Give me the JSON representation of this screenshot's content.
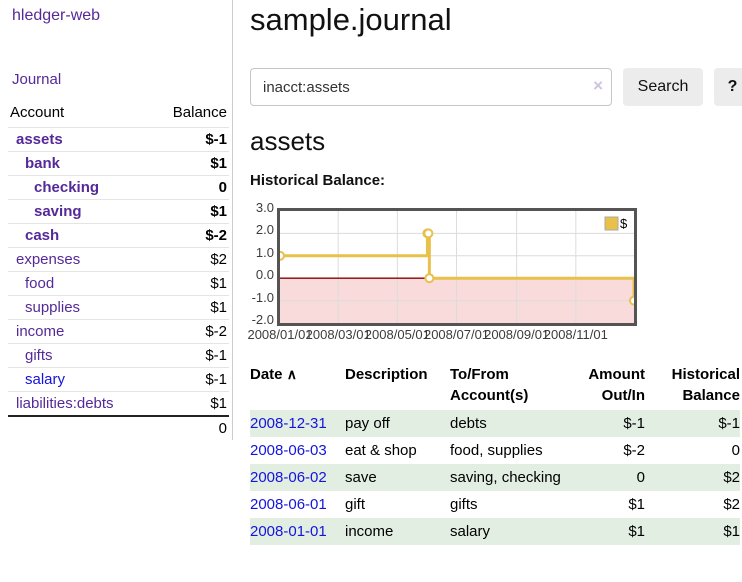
{
  "app": {
    "title": "hledger-web"
  },
  "sidebar": {
    "journal_label": "Journal",
    "accounts": {
      "header_account": "Account",
      "header_balance": "Balance",
      "rows": [
        {
          "name": "assets",
          "balance": "$-1",
          "indent": 1,
          "bold": true,
          "neg": "strong"
        },
        {
          "name": "bank",
          "balance": "$1",
          "indent": 2,
          "bold": true
        },
        {
          "name": "checking",
          "balance": "0",
          "indent": 3,
          "bold": true
        },
        {
          "name": "saving",
          "balance": "$1",
          "indent": 3,
          "bold": true
        },
        {
          "name": "cash",
          "balance": "$-2",
          "indent": 2,
          "bold": true,
          "neg": "strong"
        },
        {
          "name": "expenses",
          "balance": "$2",
          "indent": 1
        },
        {
          "name": "food",
          "balance": "$1",
          "indent": 2
        },
        {
          "name": "supplies",
          "balance": "$1",
          "indent": 2
        },
        {
          "name": "income",
          "balance": "$-2",
          "indent": 1,
          "neg": "faded"
        },
        {
          "name": "gifts",
          "balance": "$-1",
          "indent": 2,
          "neg": "faded"
        },
        {
          "name": "salary",
          "balance": "$-1",
          "indent": 2,
          "neg": "faded",
          "blue": true
        },
        {
          "name": "liabilities:debts",
          "balance": "$1",
          "indent": 1
        }
      ],
      "total": "0"
    }
  },
  "main": {
    "title": "sample.journal",
    "search": {
      "value": "inacct:assets",
      "clear_icon": "×",
      "button_label": "Search",
      "help_label": "?"
    },
    "account_heading": "assets",
    "chart_label": "Historical Balance:"
  },
  "chart_data": {
    "type": "line-step",
    "title": "Historical Balance:",
    "series": [
      {
        "name": "$",
        "color": "#e8c04a",
        "points": [
          [
            "2008-01-01",
            1
          ],
          [
            "2008-06-01",
            2
          ],
          [
            "2008-06-02",
            2
          ],
          [
            "2008-06-03",
            0
          ],
          [
            "2008-12-31",
            -1
          ]
        ]
      }
    ],
    "y_ticks": [
      "3.0",
      "2.0",
      "1.0",
      "0.0",
      "-1.0",
      "-2.0"
    ],
    "y_tick_values": [
      3,
      2,
      1,
      0,
      -1,
      -2
    ],
    "ylim": [
      -2,
      3
    ],
    "x_ticks": [
      {
        "label": "2008/01/01",
        "day": 0
      },
      {
        "label": "2008/03/01",
        "day": 60
      },
      {
        "label": "2008/05/01",
        "day": 121
      },
      {
        "label": "2008/07/01",
        "day": 182
      },
      {
        "label": "2008/09/01",
        "day": 244
      },
      {
        "label": "2008/11/01",
        "day": 305
      }
    ],
    "x_days_total": 365,
    "grid": true,
    "gridline_color": "#dcdcdc",
    "border_color": "#545454",
    "negative_region_fill": "#fadbdb",
    "zero_line_color": "#8b0000",
    "legend": {
      "label": "$",
      "swatch_color": "#e8c04a",
      "position": "top-right"
    }
  },
  "register": {
    "headers": {
      "date": "Date",
      "sort_icon": "∧",
      "description": "Description",
      "accounts": "To/From Account(s)",
      "amount": "Amount Out/In",
      "balance": "Historical Balance"
    },
    "rows": [
      {
        "date": "2008-12-31",
        "description": "pay off",
        "accounts": "debts",
        "amount": "$-1",
        "amount_neg": true,
        "balance": "$-1",
        "balance_neg": true
      },
      {
        "date": "2008-06-03",
        "description": "eat & shop",
        "accounts": "food, supplies",
        "amount": "$-2",
        "amount_neg": true,
        "balance": "0",
        "balance_neg": false
      },
      {
        "date": "2008-06-02",
        "description": "save",
        "accounts": "saving, checking",
        "amount": "0",
        "amount_neg": false,
        "balance": "$2",
        "balance_neg": false
      },
      {
        "date": "2008-06-01",
        "description": "gift",
        "accounts": "gifts",
        "amount": "$1",
        "amount_neg": false,
        "balance": "$2",
        "balance_neg": false
      },
      {
        "date": "2008-01-01",
        "description": "income",
        "accounts": "salary",
        "amount": "$1",
        "amount_neg": false,
        "balance": "$1",
        "balance_neg": false
      }
    ]
  },
  "colors": {
    "link_purple": "#552999",
    "link_blue": "#1414dd",
    "negative_strong": "#8e1923",
    "negative_faded": "#c08b8b",
    "row_stripe_green": "#e2eee2",
    "chart_line_gold": "#e8c04a"
  }
}
